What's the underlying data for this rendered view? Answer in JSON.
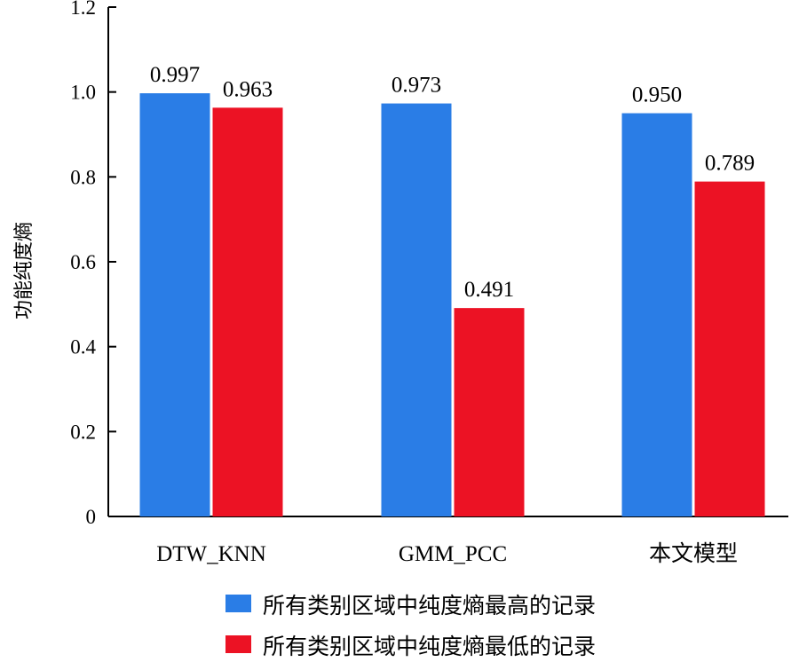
{
  "chart_data": {
    "type": "bar",
    "categories": [
      "DTW_KNN",
      "GMM_PCC",
      "本文模型"
    ],
    "series": [
      {
        "name": "所有类别区域中纯度熵最高的记录",
        "color": "#2a7de6",
        "values": [
          0.997,
          0.973,
          0.95
        ],
        "labels": [
          "0.997",
          "0.973",
          "0.950"
        ]
      },
      {
        "name": "所有类别区域中纯度熵最低的记录",
        "color": "#ec1224",
        "values": [
          0.963,
          0.491,
          0.789
        ],
        "labels": [
          "0.963",
          "0.491",
          "0.789"
        ]
      }
    ],
    "ylabel": "功能纯度熵",
    "ylim": [
      0,
      1.2
    ],
    "yticks": [
      0,
      0.2,
      0.4,
      0.6,
      0.8,
      1.0,
      1.2
    ],
    "ytick_labels": [
      "0",
      "0.2",
      "0.4",
      "0.6",
      "0.8",
      "1.0",
      "1.2"
    ],
    "grid": false,
    "legend_position": "bottom"
  }
}
